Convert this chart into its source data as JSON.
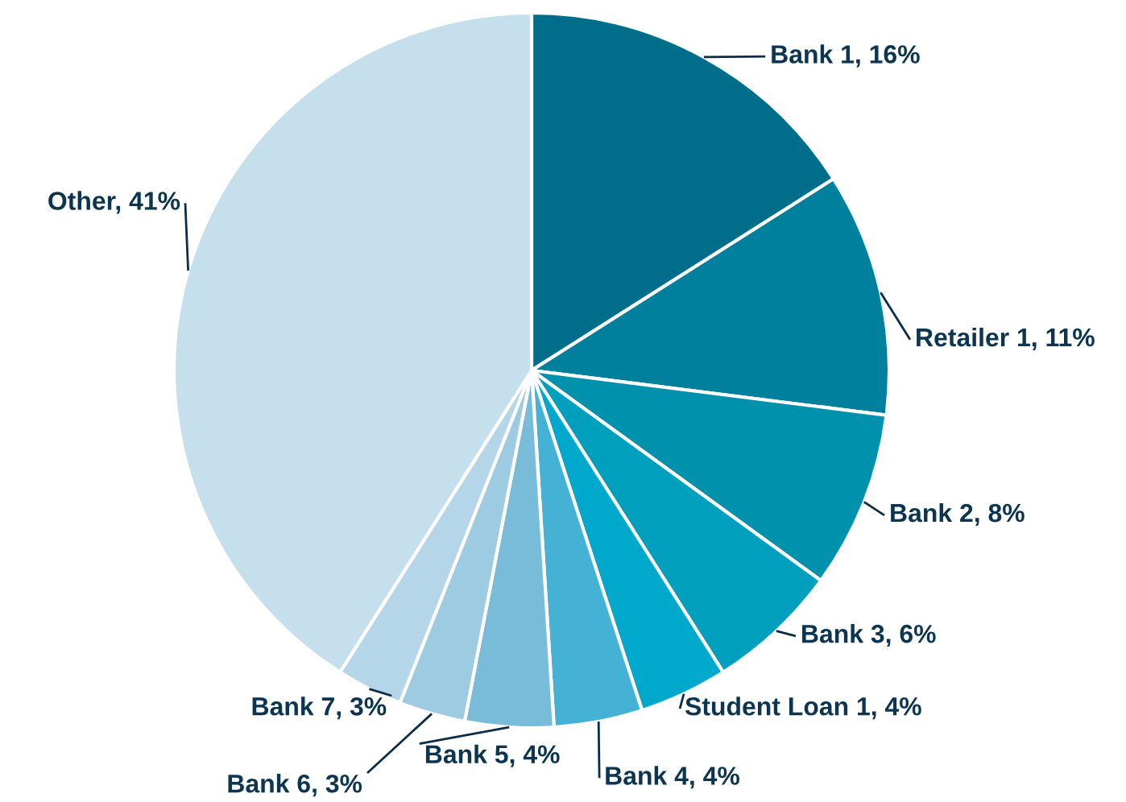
{
  "chart_data": {
    "type": "pie",
    "categories": [
      "Bank 1",
      "Retailer 1",
      "Bank 2",
      "Bank 3",
      "Student Loan 1",
      "Bank 4",
      "Bank 5",
      "Bank 6",
      "Bank 7",
      "Other"
    ],
    "values": [
      16,
      11,
      8,
      6,
      4,
      4,
      4,
      3,
      3,
      41
    ],
    "colors": [
      "#006e8a",
      "#00809c",
      "#0091ad",
      "#009fbd",
      "#00a9cc",
      "#45b2d5",
      "#78bcd9",
      "#9ccbe2",
      "#b4d6e8",
      "#c6dfed"
    ],
    "value_labels": [
      "16%",
      "11%",
      "8%",
      "6%",
      "4%",
      "4%",
      "4%",
      "3%",
      "3%",
      "41%"
    ],
    "legend": false
  }
}
